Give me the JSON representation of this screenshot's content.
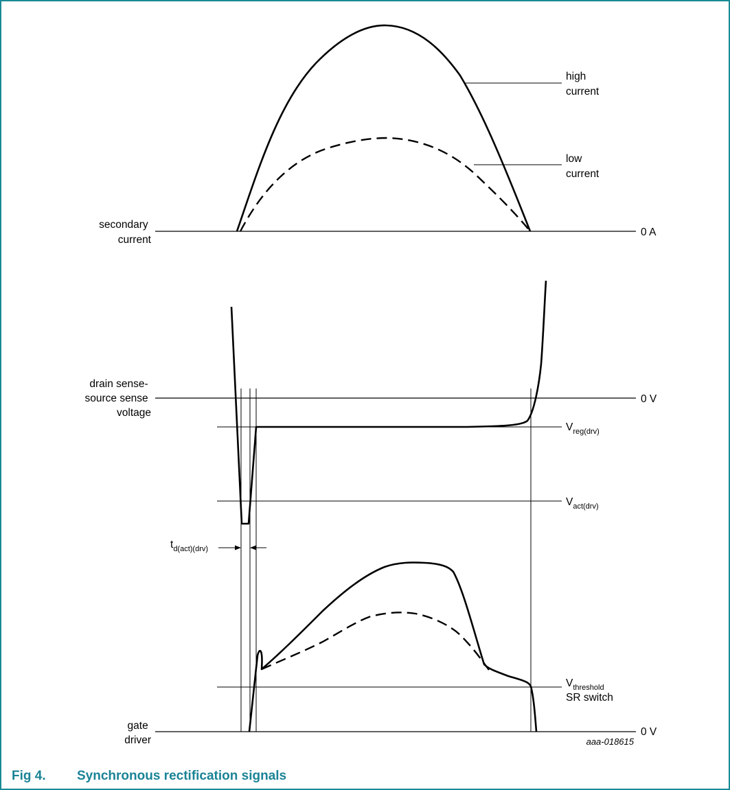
{
  "colors": {
    "frame": "#1b8a96",
    "caption": "#1b8396",
    "ink": "#000000"
  },
  "labels": {
    "secondary_current": [
      "secondary",
      "current"
    ],
    "high_current": [
      "high",
      "current"
    ],
    "low_current": [
      "low",
      "current"
    ],
    "zero_amp": "0 A",
    "drain_source": [
      "drain sense-",
      "source sense",
      "voltage"
    ],
    "zero_volt_1": "0 V",
    "vreg": {
      "main": "V",
      "sub": "reg(drv)"
    },
    "vact": {
      "main": "V",
      "sub": "act(drv)"
    },
    "td": {
      "main": "t",
      "sub": "d(act)(drv)"
    },
    "vthreshold": {
      "main": "V",
      "sub": "threshold",
      "line2": "SR switch"
    },
    "gate_driver": [
      "gate",
      "driver"
    ],
    "zero_volt_2": "0 V"
  },
  "figure_code": "aaa-018615",
  "caption": {
    "number": "Fig 4.",
    "title": "Synchronous rectification signals"
  }
}
